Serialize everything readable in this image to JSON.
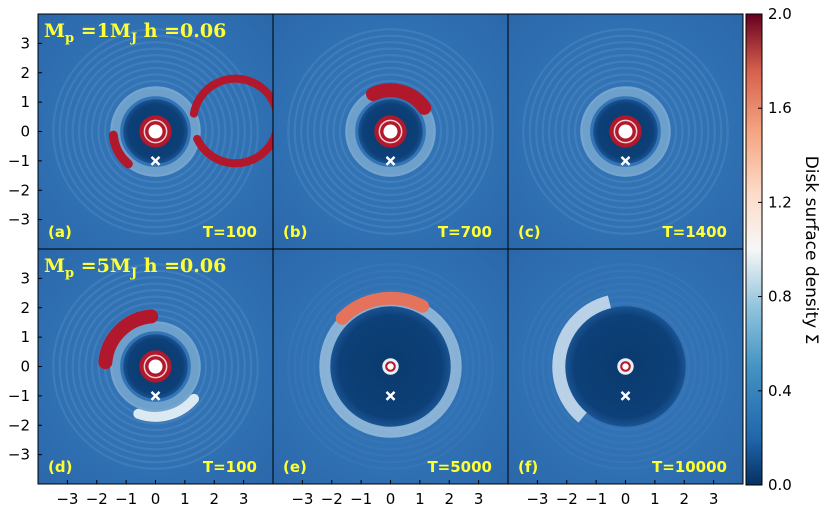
{
  "chart_data": {
    "type": "heatmap",
    "colorbar": {
      "label": "Disk surface density Σ",
      "ticks": [
        "2.0",
        "1.6",
        "1.2",
        "0.8",
        "0.4",
        "0.0"
      ],
      "range": [
        0.0,
        2.0
      ],
      "colormap": "RdBu_r"
    },
    "x_ticks": [
      "−3",
      "−2",
      "−1",
      "0",
      "1",
      "2",
      "3"
    ],
    "y_ticks": [
      "3",
      "2",
      "1",
      "0",
      "−1",
      "−2",
      "−3"
    ],
    "axis_range": [
      -4,
      4
    ],
    "rows": [
      {
        "title_parts": [
          "M",
          "p",
          " =1M",
          "J",
          " h =0.06"
        ],
        "planet_mass_mj": 1,
        "h": 0.06
      },
      {
        "title_parts": [
          "M",
          "p",
          " =5M",
          "J",
          " h =0.06"
        ],
        "planet_mass_mj": 5,
        "h": 0.06
      }
    ],
    "panels": [
      {
        "label": "(a)",
        "time_label": "T=100",
        "T": 100,
        "row": 0,
        "col": 0
      },
      {
        "label": "(b)",
        "time_label": "T=700",
        "T": 700,
        "row": 0,
        "col": 1
      },
      {
        "label": "(c)",
        "time_label": "T=1400",
        "T": 1400,
        "row": 0,
        "col": 2
      },
      {
        "label": "(d)",
        "time_label": "T=100",
        "T": 100,
        "row": 1,
        "col": 0
      },
      {
        "label": "(e)",
        "time_label": "T=5000",
        "T": 5000,
        "row": 1,
        "col": 1
      },
      {
        "label": "(f)",
        "time_label": "T=10000",
        "T": 10000,
        "row": 1,
        "col": 2
      }
    ],
    "planet_position": [
      0,
      -1
    ],
    "star_position": [
      0,
      0
    ]
  },
  "colors": {
    "background_disk": "#2a6cb0",
    "gap": "#0a3a6e",
    "vortex": "#b2182b",
    "ring": "#a7cde4",
    "label": "#ffff33",
    "marker": "#ffffff"
  }
}
